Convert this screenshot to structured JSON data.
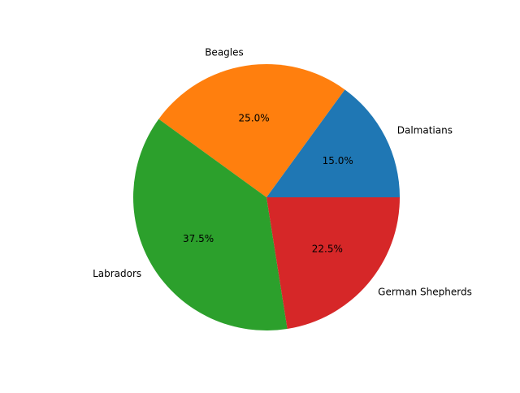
{
  "chart_data": {
    "type": "pie",
    "start_angle_deg": 0,
    "direction": "counterclockwise",
    "slices": [
      {
        "label": "Dalmatians",
        "value": 15.0,
        "pct_label": "15.0%",
        "color": "#1f77b4"
      },
      {
        "label": "Beagles",
        "value": 25.0,
        "pct_label": "25.0%",
        "color": "#ff7f0e"
      },
      {
        "label": "Labradors",
        "value": 37.5,
        "pct_label": "37.5%",
        "color": "#2ca02c"
      },
      {
        "label": "German Shepherds",
        "value": 22.5,
        "pct_label": "22.5%",
        "color": "#d62728"
      }
    ]
  }
}
